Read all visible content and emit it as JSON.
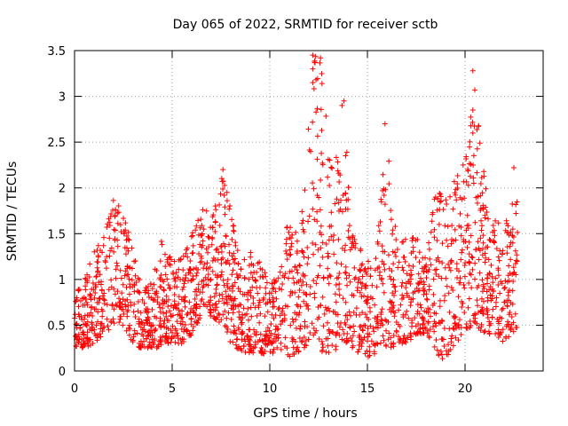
{
  "chart_data": {
    "type": "scatter",
    "title": "Day 065 of 2022, SRMTID for receiver sctb",
    "xlabel": "GPS time / hours",
    "ylabel": "SRMTID / TECUs",
    "xlim": [
      0,
      24
    ],
    "ylim": [
      0,
      3.5
    ],
    "xticks": [
      0,
      5,
      10,
      15,
      20
    ],
    "xtick_labels": [
      "0",
      "5",
      "10",
      "15",
      "20"
    ],
    "yticks": [
      0,
      0.5,
      1,
      1.5,
      2,
      2.5,
      3,
      3.5
    ],
    "ytick_labels": [
      "0",
      "0.5",
      "1",
      "1.5",
      "2",
      "2.5",
      "3",
      "3.5"
    ],
    "grid": true,
    "marker": "+",
    "color": "#ff0000",
    "envelope": [
      [
        0.0,
        0.25,
        0.9
      ],
      [
        0.5,
        0.25,
        1.0
      ],
      [
        1.0,
        0.3,
        1.3
      ],
      [
        1.5,
        0.4,
        1.5
      ],
      [
        2.0,
        0.5,
        1.9
      ],
      [
        2.5,
        0.5,
        1.8
      ],
      [
        3.0,
        0.3,
        1.3
      ],
      [
        3.5,
        0.2,
        0.9
      ],
      [
        4.0,
        0.2,
        1.0
      ],
      [
        4.5,
        0.3,
        1.5
      ],
      [
        5.0,
        0.3,
        1.2
      ],
      [
        5.5,
        0.3,
        1.3
      ],
      [
        6.0,
        0.4,
        1.5
      ],
      [
        6.5,
        0.6,
        1.8
      ],
      [
        7.0,
        0.6,
        1.7
      ],
      [
        7.5,
        0.5,
        2.2
      ],
      [
        8.0,
        0.3,
        1.8
      ],
      [
        8.5,
        0.2,
        1.2
      ],
      [
        9.0,
        0.2,
        1.3
      ],
      [
        9.5,
        0.2,
        1.2
      ],
      [
        10.0,
        0.15,
        1.0
      ],
      [
        10.5,
        0.2,
        1.1
      ],
      [
        11.0,
        0.15,
        1.8
      ],
      [
        11.5,
        0.2,
        1.4
      ],
      [
        12.0,
        0.3,
        2.7
      ],
      [
        12.3,
        0.4,
        3.45
      ],
      [
        12.7,
        0.2,
        3.4
      ],
      [
        13.0,
        0.2,
        2.4
      ],
      [
        13.5,
        0.2,
        2.5
      ],
      [
        13.8,
        0.3,
        3.0
      ],
      [
        14.0,
        0.3,
        2.2
      ],
      [
        14.5,
        0.2,
        1.5
      ],
      [
        15.0,
        0.15,
        1.2
      ],
      [
        15.5,
        0.2,
        1.4
      ],
      [
        16.0,
        0.2,
        2.7
      ],
      [
        16.5,
        0.3,
        1.4
      ],
      [
        17.0,
        0.3,
        1.5
      ],
      [
        17.5,
        0.4,
        1.5
      ],
      [
        18.0,
        0.4,
        1.3
      ],
      [
        18.5,
        0.2,
        2.0
      ],
      [
        19.0,
        0.1,
        1.9
      ],
      [
        19.5,
        0.3,
        2.1
      ],
      [
        20.0,
        0.4,
        2.3
      ],
      [
        20.4,
        0.5,
        3.3
      ],
      [
        21.0,
        0.4,
        2.1
      ],
      [
        21.5,
        0.4,
        1.8
      ],
      [
        22.0,
        0.3,
        1.5
      ],
      [
        22.5,
        0.4,
        2.2
      ],
      [
        22.7,
        0.5,
        1.8
      ]
    ],
    "notable_points": [
      [
        12.2,
        3.45
      ],
      [
        12.6,
        3.42
      ],
      [
        12.2,
        3.3
      ],
      [
        12.2,
        3.15
      ],
      [
        13.8,
        2.95
      ],
      [
        13.7,
        2.9
      ],
      [
        15.9,
        2.7
      ],
      [
        20.4,
        3.28
      ],
      [
        20.5,
        3.07
      ],
      [
        20.4,
        2.85
      ],
      [
        20.4,
        2.6
      ],
      [
        19.9,
        2.25
      ],
      [
        7.6,
        2.2
      ],
      [
        22.5,
        2.22
      ]
    ]
  }
}
